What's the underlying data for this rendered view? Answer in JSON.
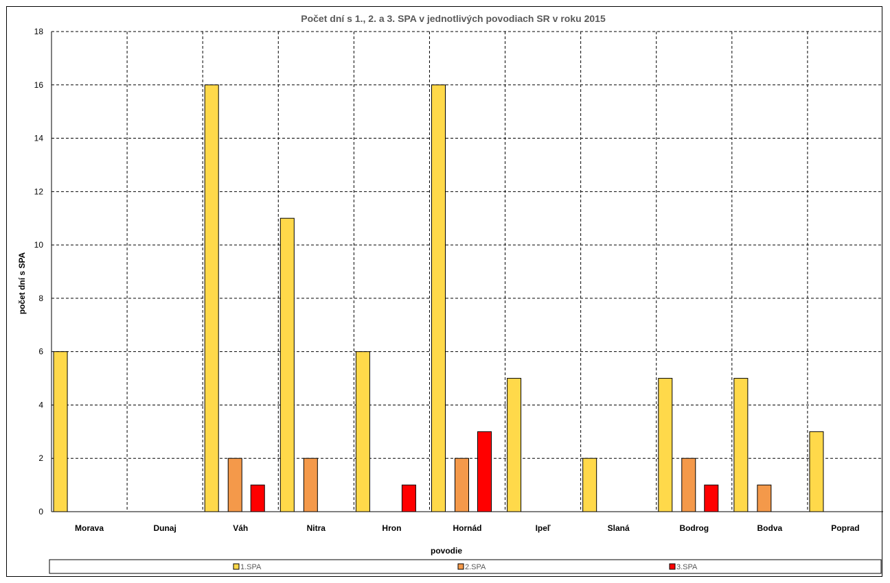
{
  "chart_data": {
    "type": "bar",
    "title": "Počet dní s 1., 2. a 3. SPA v jednotlivých povodiach SR v roku 2015",
    "xlabel": "povodie",
    "ylabel": "počet dní s SPA",
    "ylim": [
      0,
      18
    ],
    "yticks": [
      0,
      2,
      4,
      6,
      8,
      10,
      12,
      14,
      16,
      18
    ],
    "grid": true,
    "legend_position": "bottom",
    "categories": [
      "Morava",
      "Dunaj",
      "Váh",
      "Nitra",
      "Hron",
      "Hornád",
      "Ipeľ",
      "Slaná",
      "Bodrog",
      "Bodva",
      "Poprad"
    ],
    "series": [
      {
        "name": "1.SPA",
        "color": "#FFD94A",
        "values": [
          6,
          0,
          16,
          11,
          6,
          16,
          5,
          2,
          5,
          5,
          3
        ]
      },
      {
        "name": "2.SPA",
        "color": "#F4994A",
        "values": [
          0,
          0,
          2,
          2,
          0,
          2,
          0,
          0,
          2,
          1,
          0
        ]
      },
      {
        "name": "3.SPA",
        "color": "#FF0000",
        "values": [
          0,
          0,
          1,
          0,
          1,
          3,
          0,
          0,
          1,
          0,
          0
        ]
      }
    ]
  }
}
